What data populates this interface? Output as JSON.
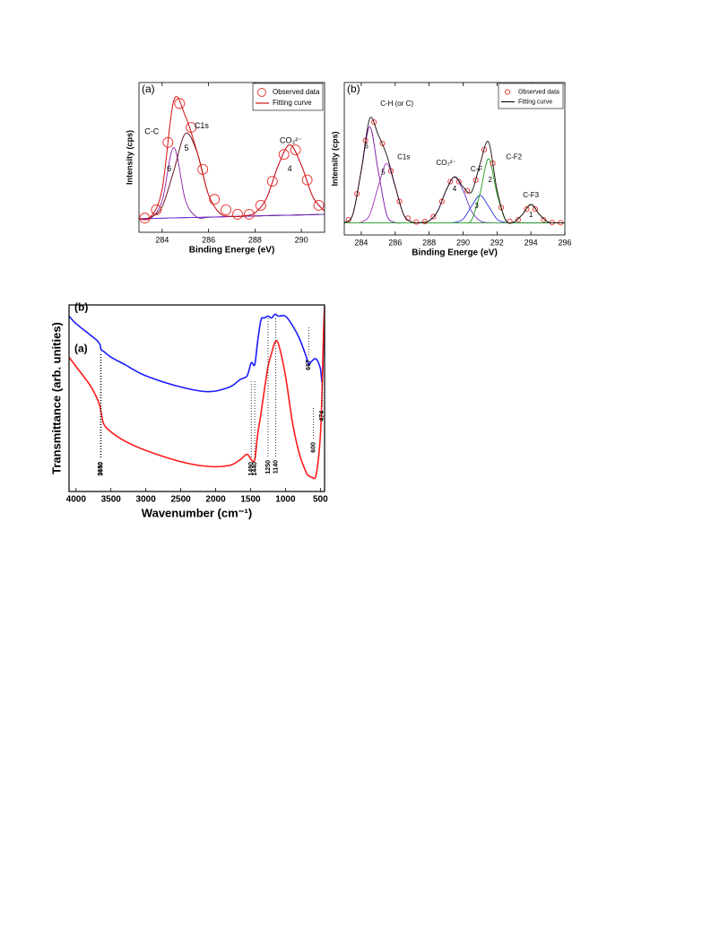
{
  "chart_data": [
    {
      "type": "line",
      "panel_label": "(a)",
      "xlabel": "Binding Energe (eV)",
      "ylabel": "Intensity (cps)",
      "xlim": [
        283,
        291
      ],
      "xticks": [
        284,
        286,
        288,
        290
      ],
      "ylim": [
        0,
        100
      ],
      "legend": "upper right",
      "x": [
        283,
        283.5,
        284,
        284.5,
        285,
        285.5,
        286,
        286.5,
        287,
        287.5,
        288,
        288.5,
        289,
        289.5,
        290,
        290.5,
        291
      ],
      "series": [
        {
          "name": "Observed data",
          "color": "#e8302c",
          "marker": "circle",
          "x": [
            283.25,
            283.75,
            284.25,
            284.75,
            285.25,
            285.75,
            286.25,
            286.75,
            287.25,
            287.75,
            288.25,
            288.75,
            289.25,
            289.75,
            290.25,
            290.75
          ],
          "values": [
            9.5,
            15,
            60,
            86,
            70,
            42,
            22,
            15,
            12,
            12,
            18,
            34,
            52,
            55,
            35,
            18
          ]
        },
        {
          "name": "Fitting curve",
          "color": "#d01010",
          "values": [
            9.0,
            10.2,
            28.8,
            88.0,
            77.6,
            53.9,
            25.0,
            12.5,
            10.6,
            10.9,
            13.0,
            22.8,
            44.5,
            58.4,
            44.8,
            23.5,
            14.1
          ]
        }
      ],
      "components": [
        {
          "color": "#8a1fa8",
          "values": [
            9,
            9.4,
            21.1,
            56.6,
            21.5,
            10.1,
            10.1,
            10.3,
            10.5,
            10.7,
            10.9,
            11.1,
            11.3,
            11.4,
            11.6,
            11.8,
            12
          ]
        },
        {
          "color": "#5a0010",
          "values": [
            9.0,
            10.0,
            17.1,
            41.0,
            65.9,
            53.7,
            25.0,
            12.5,
            10.6,
            10.7,
            10.9,
            11.1,
            11.3,
            11.4,
            11.6,
            11.8,
            12
          ]
        },
        {
          "color": "#8a1fa8",
          "values": [
            9,
            9.2,
            9.4,
            9.6,
            9.8,
            9.9,
            10.1,
            10.3,
            10.5,
            10.9,
            13.0,
            22.8,
            44.5,
            58.4,
            44.8,
            23.5,
            14.1
          ]
        },
        {
          "color": "#6a2cc8",
          "values": [
            9,
            9.2,
            9.4,
            9.6,
            9.8,
            9.9,
            10.1,
            10.3,
            10.5,
            10.7,
            10.9,
            11.1,
            11.3,
            11.4,
            11.6,
            11.8,
            12
          ]
        }
      ],
      "annotations": [
        {
          "text": "C-C",
          "x": 283.55,
          "y": 67
        },
        {
          "text": "6",
          "x": 284.3,
          "y": 42
        },
        {
          "text": "5",
          "x": 285.05,
          "y": 56
        },
        {
          "text": "C1s",
          "x": 285.7,
          "y": 71
        },
        {
          "text": "CO₃²⁻",
          "x": 289.55,
          "y": 61
        },
        {
          "text": "4",
          "x": 289.5,
          "y": 42
        }
      ]
    },
    {
      "type": "line",
      "panel_label": "(b)",
      "xlabel": "Binding Energe (eV)",
      "ylabel": "Intensity (cps)",
      "xlim": [
        283,
        296
      ],
      "xticks": [
        284,
        286,
        288,
        290,
        292,
        294,
        296
      ],
      "ylim": [
        0,
        100
      ],
      "legend": "upper right",
      "x": [
        283,
        283.5,
        284,
        284.5,
        285,
        285.5,
        286,
        286.5,
        287,
        287.5,
        288,
        288.5,
        289,
        289.5,
        290,
        290.5,
        291,
        291.5,
        292,
        292.5,
        293,
        293.5,
        294,
        294.5,
        295,
        295.5,
        296
      ],
      "series": [
        {
          "name": "Observed data",
          "color": "#e8302c",
          "marker": "circle",
          "x": [
            283.25,
            283.75,
            284.25,
            284.75,
            285.25,
            285.75,
            286.25,
            286.75,
            287.25,
            287.75,
            288.25,
            288.75,
            289.25,
            289.75,
            290.25,
            290.75,
            291.25,
            291.75,
            292.25,
            292.75,
            293.25,
            293.75,
            294.25,
            294.75,
            295.25,
            295.75
          ],
          "values": [
            10,
            27,
            62,
            74,
            60,
            42,
            22,
            11,
            8.5,
            8.8,
            12,
            22,
            35,
            35,
            29,
            36,
            56,
            47,
            18,
            9,
            10,
            17,
            17,
            10,
            8.2,
            8
          ]
        },
        {
          "name": "Fitting curve",
          "color": "#1a0a0a",
          "values": [
            8.2,
            13.4,
            42.4,
            76.3,
            65.7,
            52.4,
            31.9,
            13.3,
            8.4,
            8.1,
            9.3,
            15.5,
            29.2,
            38.2,
            31.6,
            28.2,
            46.5,
            61.0,
            29.6,
            10.0,
            8.5,
            13.5,
            20,
            13.5,
            8.5,
            8,
            8
          ]
        }
      ],
      "components": [
        {
          "color": "#7a10a0",
          "values": [
            8.2,
            13.4,
            42,
            71,
            42,
            13.4,
            8.2,
            8,
            8,
            8,
            8,
            8,
            8,
            8,
            8,
            8,
            8,
            8,
            8,
            8,
            8,
            8,
            8,
            8,
            8,
            8,
            8
          ]
        },
        {
          "color": "#a030b8",
          "values": [
            8,
            8,
            8.4,
            13.3,
            31.7,
            47,
            31.7,
            13.3,
            8.4,
            8,
            8,
            8,
            8,
            8,
            8,
            8,
            8,
            8,
            8,
            8,
            8,
            8,
            8,
            8,
            8,
            8,
            8
          ]
        },
        {
          "color": "#6a30c8",
          "values": [
            8,
            8,
            8,
            8,
            8,
            8,
            8,
            8,
            8,
            8.1,
            9.3,
            15.5,
            29.2,
            38,
            29.2,
            15.5,
            9.3,
            8.1,
            8,
            8,
            8,
            8,
            8,
            8,
            8,
            8,
            8
          ]
        },
        {
          "color": "#2a3ad8",
          "values": [
            8,
            8,
            8,
            8,
            8,
            8,
            8,
            8,
            8,
            8,
            8,
            8,
            8,
            8.2,
            10.4,
            18.9,
            26,
            18.9,
            10.4,
            8.2,
            8,
            8,
            8,
            8,
            8,
            8,
            8
          ]
        },
        {
          "color": "#1a9a1a",
          "values": [
            8,
            8,
            8,
            8,
            8,
            8,
            8,
            8,
            8,
            8,
            8,
            8,
            8,
            8,
            8,
            9.8,
            27.2,
            50,
            27.2,
            9.8,
            8,
            8,
            8,
            8,
            8,
            8,
            8
          ]
        },
        {
          "color": "#3aaa3a",
          "values": [
            8,
            8,
            8,
            8,
            8,
            8,
            8,
            8,
            8,
            8,
            8,
            8,
            8,
            8,
            8,
            8,
            8,
            8,
            8,
            8,
            8.5,
            13.5,
            20,
            13.5,
            8.5,
            8,
            8
          ]
        }
      ],
      "annotations": [
        {
          "text": "C-H (or C)",
          "x": 286.1,
          "y": 86
        },
        {
          "text": "6",
          "x": 284.3,
          "y": 58
        },
        {
          "text": "5",
          "x": 285.3,
          "y": 41
        },
        {
          "text": "C1s",
          "x": 286.5,
          "y": 51
        },
        {
          "text": "CO₃²⁻",
          "x": 289.0,
          "y": 47
        },
        {
          "text": "4",
          "x": 289.5,
          "y": 30
        },
        {
          "text": "C-F",
          "x": 290.8,
          "y": 43
        },
        {
          "text": "3",
          "x": 290.8,
          "y": 19
        },
        {
          "text": "2",
          "x": 291.6,
          "y": 36
        },
        {
          "text": "C-F2",
          "x": 293.0,
          "y": 51
        },
        {
          "text": "C-F3",
          "x": 294.0,
          "y": 26
        },
        {
          "text": "1",
          "x": 294.0,
          "y": 13
        }
      ]
    },
    {
      "type": "line",
      "xlabel": "Wavenumber (cm⁻¹)",
      "ylabel": "Transmittance (arb. unities)",
      "xlim": [
        4100,
        440
      ],
      "xticks": [
        4000,
        3500,
        3000,
        2500,
        2000,
        1500,
        1000,
        500
      ],
      "ylim": [
        0,
        100
      ],
      "x": [
        4100,
        4000,
        3800,
        3700,
        3660,
        3650,
        3640,
        3600,
        3500,
        3300,
        3000,
        2500,
        2100,
        1800,
        1650,
        1550,
        1490,
        1440,
        1400,
        1350,
        1300,
        1250,
        1200,
        1150,
        1100,
        1000,
        900,
        800,
        700,
        667,
        620,
        560,
        500,
        474,
        455,
        440
      ],
      "series": [
        {
          "name": "(b)",
          "color": "#1a1aff",
          "values": [
            94,
            90,
            84,
            81,
            79,
            78,
            76,
            75,
            72,
            68,
            62,
            56,
            53.5,
            56,
            60,
            62,
            69,
            68,
            80,
            92,
            93,
            94,
            93,
            95,
            94,
            94,
            89,
            82,
            72,
            68,
            70,
            71,
            66,
            59,
            80,
            99
          ]
        },
        {
          "name": "(a)",
          "color": "#ff1a1a",
          "values": [
            72,
            67,
            57,
            50,
            46,
            44.6,
            42,
            36,
            32,
            27,
            22,
            16,
            13.4,
            14,
            17,
            20,
            17,
            17,
            30,
            42,
            55,
            67,
            74,
            80,
            79,
            62,
            37,
            20,
            10,
            8.5,
            7.6,
            9,
            30,
            57,
            85,
            99
          ]
        }
      ],
      "band_labels": [
        3650,
        3640,
        1490,
        1440,
        1250,
        1140,
        600,
        667,
        474
      ]
    }
  ]
}
